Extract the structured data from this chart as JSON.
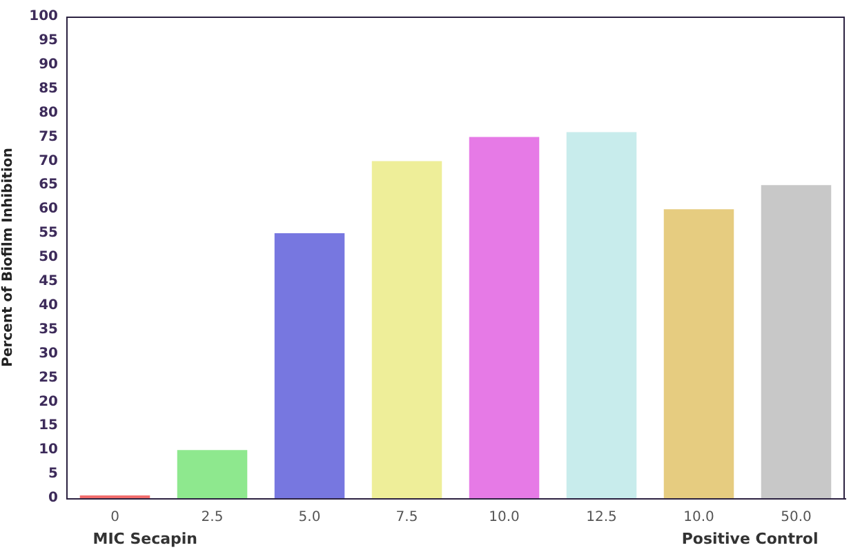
{
  "chart_data": {
    "type": "bar",
    "ylabel": "Percent of Biofilm Inhibition",
    "categories": [
      "0",
      "2.5",
      "5.0",
      "7.5",
      "10.0",
      "12.5",
      "10.0",
      "50.0"
    ],
    "values": [
      0,
      10,
      55,
      70,
      75,
      76,
      60,
      65
    ],
    "colors": [
      "#f26d6d",
      "#8ee88e",
      "#7777e0",
      "#eeee99",
      "#e67ae6",
      "#c8ecec",
      "#e6cc80",
      "#c8c8c8"
    ],
    "ylim": [
      0,
      100
    ],
    "yticks": [
      0,
      5,
      10,
      15,
      20,
      25,
      30,
      35,
      40,
      45,
      50,
      55,
      60,
      65,
      70,
      75,
      80,
      85,
      90,
      95,
      100
    ],
    "grid": false,
    "annotations": [
      "MIC Secapin",
      "Positive Control"
    ]
  }
}
